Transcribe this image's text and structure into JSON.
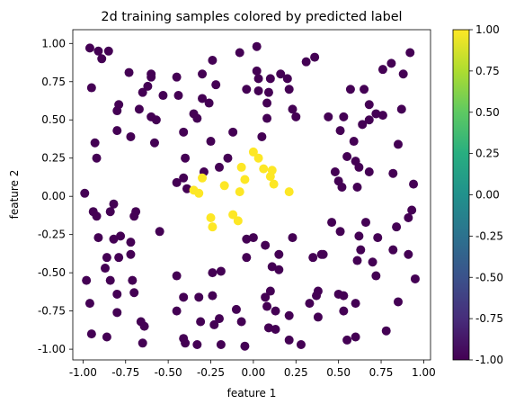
{
  "chart_data": {
    "type": "scatter",
    "title": "2d training samples colored by predicted label",
    "xlabel": "feature 1",
    "ylabel": "feature 2",
    "xlim": [
      -1.06,
      1.04
    ],
    "ylim": [
      -1.07,
      1.09
    ],
    "xticks": [
      -1.0,
      -0.75,
      -0.5,
      -0.25,
      0.0,
      0.25,
      0.5,
      0.75,
      1.0
    ],
    "xtick_labels": [
      "-1.00",
      "-0.75",
      "-0.50",
      "-0.25",
      "0.00",
      "0.25",
      "0.50",
      "0.75",
      "1.00"
    ],
    "yticks": [
      -1.0,
      -0.75,
      -0.5,
      -0.25,
      0.0,
      0.25,
      0.5,
      0.75,
      1.0
    ],
    "ytick_labels": [
      "-1.00",
      "-0.75",
      "-0.50",
      "-0.25",
      "0.00",
      "0.25",
      "0.50",
      "0.75",
      "1.00"
    ],
    "grid": false,
    "colorbar": {
      "colormap": "viridis",
      "range": [
        -1.0,
        1.0
      ],
      "ticks": [
        1.0,
        0.75,
        0.5,
        0.25,
        0.0,
        -0.25,
        -0.5,
        -0.75,
        -1.0
      ],
      "tick_labels": [
        "1.00",
        "0.75",
        "0.50",
        "0.25",
        "0.00",
        "-0.25",
        "-0.50",
        "-0.75",
        "-1.00"
      ]
    },
    "colors": {
      "label_neg": "#440154",
      "label_pos": "#fde725"
    },
    "points": [
      {
        "x": -0.96,
        "y": 0.97,
        "label": -1
      },
      {
        "x": -0.91,
        "y": 0.95,
        "label": -1
      },
      {
        "x": -0.85,
        "y": 0.95,
        "label": -1
      },
      {
        "x": -0.89,
        "y": 0.9,
        "label": -1
      },
      {
        "x": -0.73,
        "y": 0.81,
        "label": -1
      },
      {
        "x": -0.6,
        "y": 0.8,
        "label": -1
      },
      {
        "x": -0.6,
        "y": 0.78,
        "label": -1
      },
      {
        "x": -0.45,
        "y": 0.78,
        "label": -1
      },
      {
        "x": -0.3,
        "y": 0.8,
        "label": -1
      },
      {
        "x": -0.24,
        "y": 0.89,
        "label": -1
      },
      {
        "x": -0.08,
        "y": 0.94,
        "label": -1
      },
      {
        "x": 0.02,
        "y": 0.98,
        "label": -1
      },
      {
        "x": 0.02,
        "y": 0.82,
        "label": -1
      },
      {
        "x": 0.03,
        "y": 0.77,
        "label": -1
      },
      {
        "x": 0.1,
        "y": 0.77,
        "label": -1
      },
      {
        "x": 0.16,
        "y": 0.8,
        "label": -1
      },
      {
        "x": 0.31,
        "y": 0.88,
        "label": -1
      },
      {
        "x": 0.36,
        "y": 0.91,
        "label": -1
      },
      {
        "x": 0.92,
        "y": 0.94,
        "label": -1
      },
      {
        "x": 0.81,
        "y": 0.87,
        "label": -1
      },
      {
        "x": 0.76,
        "y": 0.83,
        "label": -1
      },
      {
        "x": 0.2,
        "y": 0.77,
        "label": -1
      },
      {
        "x": -0.95,
        "y": 0.71,
        "label": -1
      },
      {
        "x": -0.65,
        "y": 0.68,
        "label": -1
      },
      {
        "x": -0.62,
        "y": 0.72,
        "label": -1
      },
      {
        "x": -0.53,
        "y": 0.66,
        "label": -1
      },
      {
        "x": -0.44,
        "y": 0.66,
        "label": -1
      },
      {
        "x": -0.22,
        "y": 0.73,
        "label": -1
      },
      {
        "x": -0.3,
        "y": 0.64,
        "label": -1
      },
      {
        "x": -0.04,
        "y": 0.7,
        "label": -1
      },
      {
        "x": 0.03,
        "y": 0.69,
        "label": -1
      },
      {
        "x": 0.09,
        "y": 0.68,
        "label": -1
      },
      {
        "x": 0.21,
        "y": 0.7,
        "label": -1
      },
      {
        "x": 0.57,
        "y": 0.7,
        "label": -1
      },
      {
        "x": 0.65,
        "y": 0.7,
        "label": -1
      },
      {
        "x": 0.88,
        "y": 0.8,
        "label": -1
      },
      {
        "x": -0.8,
        "y": 0.56,
        "label": -1
      },
      {
        "x": -0.79,
        "y": 0.6,
        "label": -1
      },
      {
        "x": -0.67,
        "y": 0.57,
        "label": -1
      },
      {
        "x": -0.6,
        "y": 0.52,
        "label": -1
      },
      {
        "x": -0.57,
        "y": 0.5,
        "label": -1
      },
      {
        "x": -0.35,
        "y": 0.54,
        "label": -1
      },
      {
        "x": -0.33,
        "y": 0.51,
        "label": -1
      },
      {
        "x": -0.26,
        "y": 0.61,
        "label": -1
      },
      {
        "x": 0.08,
        "y": 0.61,
        "label": -1
      },
      {
        "x": 0.23,
        "y": 0.57,
        "label": -1
      },
      {
        "x": 0.08,
        "y": 0.51,
        "label": -1
      },
      {
        "x": 0.25,
        "y": 0.52,
        "label": -1
      },
      {
        "x": 0.44,
        "y": 0.52,
        "label": -1
      },
      {
        "x": 0.53,
        "y": 0.52,
        "label": -1
      },
      {
        "x": 0.68,
        "y": 0.6,
        "label": -1
      },
      {
        "x": 0.68,
        "y": 0.5,
        "label": -1
      },
      {
        "x": 0.64,
        "y": 0.47,
        "label": -1
      },
      {
        "x": 0.51,
        "y": 0.43,
        "label": -1
      },
      {
        "x": 0.72,
        "y": 0.54,
        "label": -1
      },
      {
        "x": 0.76,
        "y": 0.53,
        "label": -1
      },
      {
        "x": 0.87,
        "y": 0.57,
        "label": -1
      },
      {
        "x": -0.8,
        "y": 0.43,
        "label": -1
      },
      {
        "x": -0.72,
        "y": 0.39,
        "label": -1
      },
      {
        "x": -0.58,
        "y": 0.35,
        "label": -1
      },
      {
        "x": -0.93,
        "y": 0.35,
        "label": -1
      },
      {
        "x": -0.92,
        "y": 0.25,
        "label": -1
      },
      {
        "x": -0.41,
        "y": 0.42,
        "label": -1
      },
      {
        "x": -0.4,
        "y": 0.25,
        "label": -1
      },
      {
        "x": -0.25,
        "y": 0.36,
        "label": -1
      },
      {
        "x": -0.12,
        "y": 0.42,
        "label": -1
      },
      {
        "x": 0.05,
        "y": 0.39,
        "label": -1
      },
      {
        "x": 0.59,
        "y": 0.36,
        "label": -1
      },
      {
        "x": 0.55,
        "y": 0.26,
        "label": -1
      },
      {
        "x": 0.6,
        "y": 0.23,
        "label": -1
      },
      {
        "x": 0.62,
        "y": 0.19,
        "label": -1
      },
      {
        "x": 0.68,
        "y": 0.16,
        "label": -1
      },
      {
        "x": 0.85,
        "y": 0.34,
        "label": -1
      },
      {
        "x": 0.82,
        "y": 0.15,
        "label": -1
      },
      {
        "x": 0.5,
        "y": 0.1,
        "label": -1
      },
      {
        "x": 0.52,
        "y": 0.06,
        "label": -1
      },
      {
        "x": 0.61,
        "y": 0.06,
        "label": -1
      },
      {
        "x": 0.94,
        "y": 0.08,
        "label": -1
      },
      {
        "x": 0.48,
        "y": 0.16,
        "label": -1
      },
      {
        "x": -0.29,
        "y": 0.16,
        "label": -1
      },
      {
        "x": -0.41,
        "y": 0.12,
        "label": -1
      },
      {
        "x": -0.45,
        "y": 0.09,
        "label": -1
      },
      {
        "x": -0.39,
        "y": 0.05,
        "label": -1
      },
      {
        "x": -0.2,
        "y": 0.19,
        "label": -1
      },
      {
        "x": -0.15,
        "y": 0.25,
        "label": -1
      },
      {
        "x": -0.99,
        "y": 0.02,
        "label": -1
      },
      {
        "x": -0.94,
        "y": -0.1,
        "label": -1
      },
      {
        "x": -0.92,
        "y": -0.13,
        "label": -1
      },
      {
        "x": -0.82,
        "y": -0.05,
        "label": -1
      },
      {
        "x": -0.84,
        "y": -0.1,
        "label": -1
      },
      {
        "x": -0.69,
        "y": -0.1,
        "label": -1
      },
      {
        "x": -0.7,
        "y": -0.13,
        "label": -1
      },
      {
        "x": -0.55,
        "y": -0.23,
        "label": -1
      },
      {
        "x": -0.91,
        "y": -0.27,
        "label": -1
      },
      {
        "x": -0.82,
        "y": -0.28,
        "label": -1
      },
      {
        "x": -0.78,
        "y": -0.26,
        "label": -1
      },
      {
        "x": -0.72,
        "y": -0.3,
        "label": -1
      },
      {
        "x": -0.86,
        "y": -0.4,
        "label": -1
      },
      {
        "x": -0.79,
        "y": -0.4,
        "label": -1
      },
      {
        "x": -0.87,
        "y": -0.47,
        "label": -1
      },
      {
        "x": -0.72,
        "y": -0.38,
        "label": -1
      },
      {
        "x": -0.98,
        "y": -0.55,
        "label": -1
      },
      {
        "x": -0.84,
        "y": -0.55,
        "label": -1
      },
      {
        "x": -0.71,
        "y": -0.55,
        "label": -1
      },
      {
        "x": -0.8,
        "y": -0.64,
        "label": -1
      },
      {
        "x": -0.7,
        "y": -0.63,
        "label": -1
      },
      {
        "x": -0.96,
        "y": -0.7,
        "label": -1
      },
      {
        "x": -0.8,
        "y": -0.76,
        "label": -1
      },
      {
        "x": -0.66,
        "y": -0.82,
        "label": -1
      },
      {
        "x": -0.64,
        "y": -0.85,
        "label": -1
      },
      {
        "x": -0.95,
        "y": -0.9,
        "label": -1
      },
      {
        "x": -0.86,
        "y": -0.92,
        "label": -1
      },
      {
        "x": -0.65,
        "y": -0.96,
        "label": -1
      },
      {
        "x": -0.45,
        "y": -0.52,
        "label": -1
      },
      {
        "x": -0.41,
        "y": -0.66,
        "label": -1
      },
      {
        "x": -0.32,
        "y": -0.66,
        "label": -1
      },
      {
        "x": -0.45,
        "y": -0.75,
        "label": -1
      },
      {
        "x": -0.41,
        "y": -0.93,
        "label": -1
      },
      {
        "x": -0.4,
        "y": -0.96,
        "label": -1
      },
      {
        "x": -0.31,
        "y": -0.82,
        "label": -1
      },
      {
        "x": -0.33,
        "y": -0.97,
        "label": -1
      },
      {
        "x": -0.24,
        "y": -0.65,
        "label": -1
      },
      {
        "x": -0.24,
        "y": -0.5,
        "label": -1
      },
      {
        "x": -0.19,
        "y": -0.49,
        "label": -1
      },
      {
        "x": -0.2,
        "y": -0.8,
        "label": -1
      },
      {
        "x": -0.23,
        "y": -0.84,
        "label": -1
      },
      {
        "x": -0.1,
        "y": -0.74,
        "label": -1
      },
      {
        "x": -0.07,
        "y": -0.82,
        "label": -1
      },
      {
        "x": -0.19,
        "y": -0.97,
        "label": -1
      },
      {
        "x": -0.05,
        "y": -0.98,
        "label": -1
      },
      {
        "x": -0.04,
        "y": -0.28,
        "label": -1
      },
      {
        "x": 0.0,
        "y": -0.27,
        "label": -1
      },
      {
        "x": 0.07,
        "y": -0.32,
        "label": -1
      },
      {
        "x": -0.04,
        "y": -0.4,
        "label": -1
      },
      {
        "x": 0.15,
        "y": -0.38,
        "label": -1
      },
      {
        "x": 0.11,
        "y": -0.46,
        "label": -1
      },
      {
        "x": 0.15,
        "y": -0.48,
        "label": -1
      },
      {
        "x": 0.07,
        "y": -0.66,
        "label": -1
      },
      {
        "x": 0.1,
        "y": -0.62,
        "label": -1
      },
      {
        "x": 0.08,
        "y": -0.72,
        "label": -1
      },
      {
        "x": 0.13,
        "y": -0.75,
        "label": -1
      },
      {
        "x": 0.21,
        "y": -0.78,
        "label": -1
      },
      {
        "x": 0.09,
        "y": -0.86,
        "label": -1
      },
      {
        "x": 0.13,
        "y": -0.87,
        "label": -1
      },
      {
        "x": 0.21,
        "y": -0.94,
        "label": -1
      },
      {
        "x": 0.28,
        "y": -0.97,
        "label": -1
      },
      {
        "x": 0.23,
        "y": -0.27,
        "label": -1
      },
      {
        "x": 0.35,
        "y": -0.4,
        "label": -1
      },
      {
        "x": 0.4,
        "y": -0.38,
        "label": -1
      },
      {
        "x": 0.41,
        "y": -0.38,
        "label": -1
      },
      {
        "x": 0.46,
        "y": -0.17,
        "label": -1
      },
      {
        "x": 0.51,
        "y": -0.23,
        "label": -1
      },
      {
        "x": 0.62,
        "y": -0.26,
        "label": -1
      },
      {
        "x": 0.66,
        "y": -0.17,
        "label": -1
      },
      {
        "x": 0.73,
        "y": -0.27,
        "label": -1
      },
      {
        "x": 0.63,
        "y": -0.35,
        "label": -1
      },
      {
        "x": 0.82,
        "y": -0.35,
        "label": -1
      },
      {
        "x": 0.61,
        "y": -0.42,
        "label": -1
      },
      {
        "x": 0.7,
        "y": -0.43,
        "label": -1
      },
      {
        "x": 0.72,
        "y": -0.52,
        "label": -1
      },
      {
        "x": 0.91,
        "y": -0.38,
        "label": -1
      },
      {
        "x": 0.95,
        "y": -0.54,
        "label": -1
      },
      {
        "x": 0.93,
        "y": -0.09,
        "label": -1
      },
      {
        "x": 0.91,
        "y": -0.14,
        "label": -1
      },
      {
        "x": 0.84,
        "y": -0.2,
        "label": -1
      },
      {
        "x": 0.5,
        "y": -0.64,
        "label": -1
      },
      {
        "x": 0.53,
        "y": -0.65,
        "label": -1
      },
      {
        "x": 0.6,
        "y": -0.7,
        "label": -1
      },
      {
        "x": 0.38,
        "y": -0.62,
        "label": -1
      },
      {
        "x": 0.37,
        "y": -0.65,
        "label": -1
      },
      {
        "x": 0.33,
        "y": -0.7,
        "label": -1
      },
      {
        "x": 0.53,
        "y": -0.75,
        "label": -1
      },
      {
        "x": 0.38,
        "y": -0.79,
        "label": -1
      },
      {
        "x": 0.85,
        "y": -0.69,
        "label": -1
      },
      {
        "x": 0.78,
        "y": -0.88,
        "label": -1
      },
      {
        "x": 0.6,
        "y": -0.92,
        "label": -1
      },
      {
        "x": 0.55,
        "y": -0.94,
        "label": -1
      },
      {
        "x": -0.35,
        "y": 0.04,
        "label": 1
      },
      {
        "x": -0.32,
        "y": 0.02,
        "label": 1
      },
      {
        "x": -0.3,
        "y": 0.12,
        "label": 1
      },
      {
        "x": -0.17,
        "y": 0.07,
        "label": 1
      },
      {
        "x": -0.07,
        "y": 0.19,
        "label": 1
      },
      {
        "x": -0.08,
        "y": 0.03,
        "label": 1
      },
      {
        "x": -0.05,
        "y": 0.11,
        "label": 1
      },
      {
        "x": 0.0,
        "y": 0.29,
        "label": 1
      },
      {
        "x": 0.03,
        "y": 0.25,
        "label": 1
      },
      {
        "x": 0.06,
        "y": 0.18,
        "label": 1
      },
      {
        "x": 0.11,
        "y": 0.17,
        "label": 1
      },
      {
        "x": 0.1,
        "y": 0.13,
        "label": 1
      },
      {
        "x": 0.12,
        "y": 0.08,
        "label": 1
      },
      {
        "x": 0.21,
        "y": 0.03,
        "label": 1
      },
      {
        "x": -0.25,
        "y": -0.14,
        "label": 1
      },
      {
        "x": -0.24,
        "y": -0.2,
        "label": 1
      },
      {
        "x": -0.12,
        "y": -0.12,
        "label": 1
      },
      {
        "x": -0.09,
        "y": -0.16,
        "label": 1
      }
    ]
  }
}
